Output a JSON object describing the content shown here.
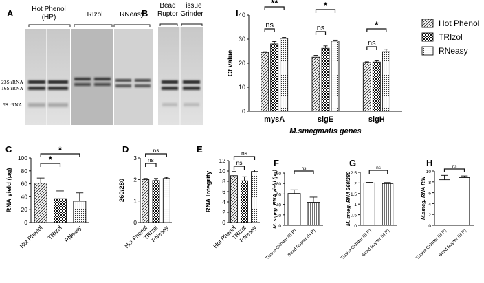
{
  "panels": {
    "A": {
      "letter": "A",
      "groups": [
        {
          "label": "Hot Phenol",
          "label2": "(HP)"
        },
        {
          "label": "TRIzol",
          "label2": ""
        },
        {
          "label": "RNeasy",
          "label2": ""
        }
      ],
      "bands": [
        "23S rRNA",
        "16S rRNA",
        "5S rRNA"
      ]
    },
    "B": {
      "letter": "B",
      "groups": [
        {
          "label": "Bead",
          "label2": "Ruptor"
        },
        {
          "label": "Tissue",
          "label2": "Grinder"
        }
      ]
    }
  },
  "chart_data": [
    {
      "id": "I",
      "letter": "I",
      "type": "bar",
      "categories": [
        "mysA",
        "sigE",
        "sigH"
      ],
      "series": [
        {
          "name": "Hot Phenol",
          "values": [
            24.5,
            22.5,
            20.3
          ],
          "errors": [
            0.3,
            0.8,
            0.3
          ]
        },
        {
          "name": "TRIzol",
          "values": [
            28.0,
            26.2,
            20.5
          ],
          "errors": [
            1.0,
            1.0,
            0.5
          ]
        },
        {
          "name": "RNeasy",
          "values": [
            30.3,
            29.2,
            24.8
          ],
          "errors": [
            0.4,
            0.4,
            1.0
          ]
        }
      ],
      "xlabel": "M.smegmatis genes",
      "ylabel": "Ct value",
      "ylim": [
        0,
        40
      ],
      "yticks": [
        0,
        10,
        20,
        30,
        40
      ],
      "legend": "right",
      "annotations": [
        {
          "group": 0,
          "text": "**",
          "level": "upper"
        },
        {
          "group": 0,
          "text": "ns",
          "level": "lower"
        },
        {
          "group": 1,
          "text": "*",
          "level": "upper"
        },
        {
          "group": 1,
          "text": "ns",
          "level": "lower"
        },
        {
          "group": 2,
          "text": "*",
          "level": "upper"
        },
        {
          "group": 2,
          "text": "ns",
          "level": "lower"
        }
      ]
    },
    {
      "id": "C",
      "letter": "C",
      "type": "bar",
      "categories": [
        "Hot Phenol",
        "TRIzol",
        "RNeasy"
      ],
      "values": [
        61,
        37,
        33
      ],
      "errors": [
        8,
        12,
        13
      ],
      "ylabel": "RNA yield (μg)",
      "ylim": [
        0,
        100
      ],
      "yticks": [
        0,
        20,
        40,
        60,
        80,
        100
      ],
      "annotations": [
        {
          "from": 0,
          "to": 2,
          "text": "*",
          "level": "upper"
        },
        {
          "from": 0,
          "to": 1,
          "text": "*",
          "level": "lower"
        }
      ]
    },
    {
      "id": "D",
      "letter": "D",
      "type": "bar",
      "categories": [
        "Hot Phenol",
        "TRIzol",
        "RNeasy"
      ],
      "values": [
        2.0,
        1.95,
        2.05
      ],
      "errors": [
        0.05,
        0.1,
        0.05
      ],
      "ylabel": "260/280",
      "ylim": [
        0,
        3
      ],
      "yticks": [
        0,
        1,
        2,
        3
      ],
      "annotations": [
        {
          "from": 0,
          "to": 2,
          "text": "ns",
          "level": "upper"
        },
        {
          "from": 0,
          "to": 1,
          "text": "ns",
          "level": "lower"
        }
      ]
    },
    {
      "id": "E",
      "letter": "E",
      "type": "bar",
      "categories": [
        "Hot Phenol",
        "TRIzol",
        "RNeasy"
      ],
      "values": [
        9.1,
        8.1,
        9.9
      ],
      "errors": [
        0.8,
        0.8,
        0.3
      ],
      "ylabel": "RNA Integrity",
      "ylim": [
        0,
        12
      ],
      "yticks": [
        0,
        2,
        4,
        6,
        8,
        10,
        12
      ],
      "annotations": [
        {
          "from": 0,
          "to": 2,
          "text": "ns",
          "level": "upper"
        },
        {
          "from": 0,
          "to": 1,
          "text": "ns",
          "level": "lower"
        }
      ]
    },
    {
      "id": "F",
      "letter": "F",
      "type": "bar",
      "categories": [
        "Tissue Grinder (H P)",
        "Bead Ruptor (H P)"
      ],
      "values": [
        61,
        44
      ],
      "errors": [
        7,
        10
      ],
      "ylabel": "M. smeg. RNA yield (μg)",
      "ylim": [
        0,
        100
      ],
      "yticks": [
        0,
        20,
        40,
        60,
        80,
        100
      ],
      "annotations": [
        {
          "from": 0,
          "to": 1,
          "text": "ns",
          "level": "upper"
        }
      ]
    },
    {
      "id": "G",
      "letter": "G",
      "type": "bar",
      "categories": [
        "Tissue Grinder (H P)",
        "Bead Ruptor (H P)"
      ],
      "values": [
        2.0,
        1.97
      ],
      "errors": [
        0.03,
        0.05
      ],
      "ylabel": "M. smeg. RNA 260/280",
      "ylim": [
        0,
        2.5
      ],
      "yticks": [
        0.0,
        0.5,
        1.0,
        1.5,
        2.0,
        2.5
      ],
      "annotations": [
        {
          "from": 0,
          "to": 1,
          "text": "ns",
          "level": "upper"
        }
      ]
    },
    {
      "id": "H",
      "letter": "H",
      "type": "bar",
      "categories": [
        "Tissue Grinder (H P)",
        "Bead Ruptor (H P)"
      ],
      "values": [
        8.4,
        8.8
      ],
      "errors": [
        0.8,
        0.3
      ],
      "ylabel": "M.smeg. RNA RIN",
      "ylim": [
        0,
        10
      ],
      "yticks": [
        0,
        2,
        4,
        6,
        8,
        10
      ],
      "annotations": [
        {
          "from": 0,
          "to": 1,
          "text": "ns",
          "level": "upper"
        }
      ]
    }
  ],
  "colors": {
    "bar_fill": "#ffffff",
    "stroke": "#111111",
    "gel_bg": "#d9d9d9"
  }
}
